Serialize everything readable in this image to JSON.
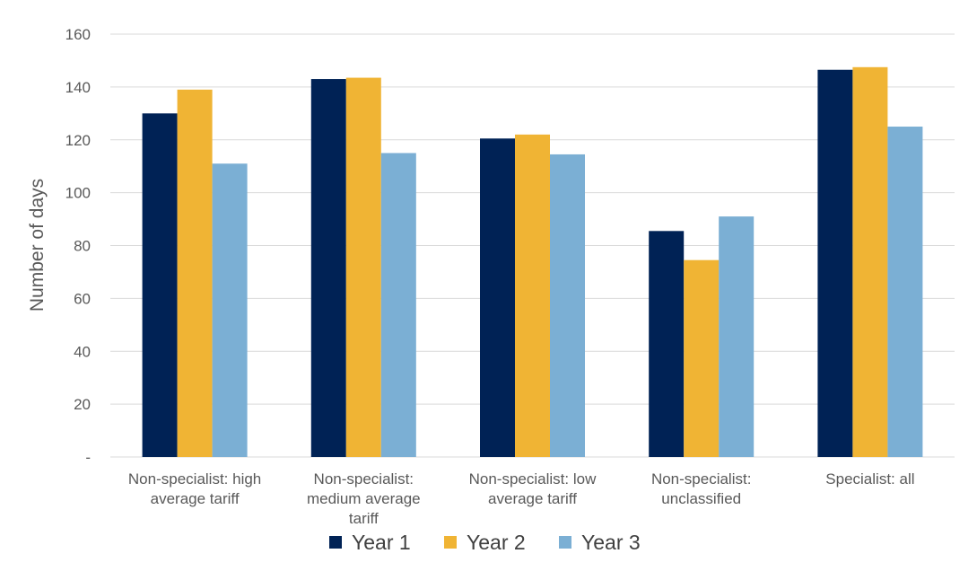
{
  "chart_data": {
    "type": "bar",
    "title": "",
    "xlabel": "",
    "ylabel": "Number of days",
    "ylim": [
      0,
      160
    ],
    "yticks": [
      0,
      20,
      40,
      60,
      80,
      100,
      120,
      140,
      160
    ],
    "ytick_labels": [
      "-",
      "20",
      "40",
      "60",
      "80",
      "100",
      "120",
      "140",
      "160"
    ],
    "grid": true,
    "legend_position": "bottom",
    "categories": [
      [
        "Non-specialist: high",
        "average tariff"
      ],
      [
        "Non-specialist:",
        "medium average",
        "tariff"
      ],
      [
        "Non-specialist: low",
        "average tariff"
      ],
      [
        "Non-specialist:",
        "unclassified"
      ],
      [
        "Specialist: all"
      ]
    ],
    "series": [
      {
        "name": "Year 1",
        "color": "#002255",
        "values": [
          130,
          143,
          120.5,
          85.5,
          146.5
        ]
      },
      {
        "name": "Year 2",
        "color": "#f0b434",
        "values": [
          139,
          143.5,
          122,
          74.5,
          147.5
        ]
      },
      {
        "name": "Year 3",
        "color": "#7bafd4",
        "values": [
          111,
          115,
          114.5,
          91,
          125
        ]
      }
    ]
  }
}
